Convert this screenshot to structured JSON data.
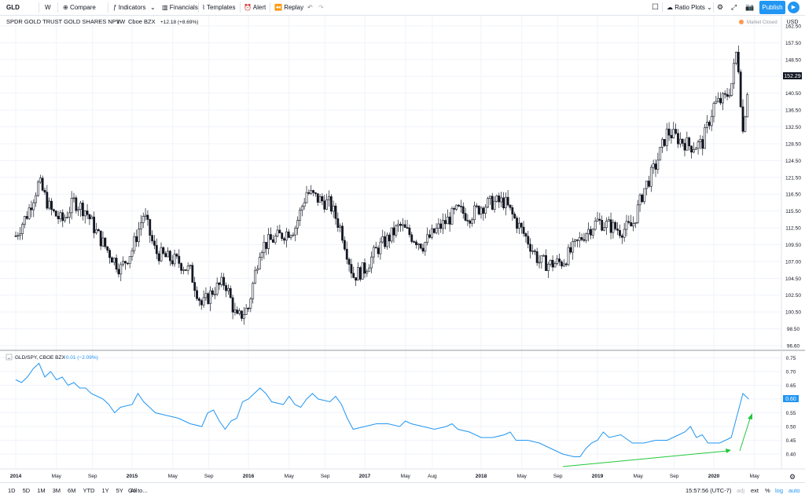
{
  "toolbar": {
    "symbol": "GLD",
    "interval": "W",
    "compare": "Compare",
    "indicators": "Indicators",
    "financials": "Financials",
    "templates": "Templates",
    "alert": "Alert",
    "replay": "Replay",
    "ratio_plots": "Ratio Plots",
    "publish": "Publish"
  },
  "legend": {
    "title": "SPDR GOLD TRUST GOLD SHARES NPV",
    "interval": "1W",
    "exchange": "Cboe BZX",
    "change": "+12.18 (+8.69%)",
    "market_status": "Market Closed"
  },
  "indicator_legend": {
    "title": "GLD/SPY, CBOE BZX",
    "change": "−0.01 (−2.09%)"
  },
  "currency": "USD",
  "bottom": {
    "ranges": [
      "1D",
      "5D",
      "1M",
      "3M",
      "6M",
      "YTD",
      "1Y",
      "5Y",
      "All"
    ],
    "goto": "Go to...",
    "time": "15:57:56 (UTC-7)",
    "adj": "adj",
    "ext": "ext",
    "pct": "%",
    "log": "log",
    "auto": "auto"
  },
  "colors": {
    "accent": "#2196f3",
    "ratio_line": "#2196f3",
    "annotation": "#22c73a",
    "market_closed": "#ff9850",
    "candle": "#131722"
  },
  "chart_data": [
    {
      "type": "candlestick",
      "title": "SPDR GOLD TRUST GOLD SHARES NPV",
      "ylim": [
        96.6,
        162.5
      ],
      "y_ticks": [
        "162.50",
        "157.50",
        "152.29",
        "148.50",
        "144.50",
        "140.50",
        "136.50",
        "132.50",
        "128.50",
        "124.50",
        "121.50",
        "116.50",
        "115.50",
        "112.50",
        "109.50",
        "107.00",
        "104.50",
        "102.50",
        "100.50",
        "98.50",
        "96.60"
      ],
      "last_price": "152.29",
      "x_tick_labels": [
        "2014",
        "May",
        "Sep",
        "2015",
        "May",
        "Sep",
        "2016",
        "May",
        "Sep",
        "2017",
        "May",
        "Aug",
        "2018",
        "May",
        "Sep",
        "2019",
        "May",
        "Sep",
        "2020",
        "May"
      ],
      "weekly_close_approx": [
        [
          2014.0,
          119.4
        ],
        [
          2014.1,
          124.0
        ],
        [
          2014.2,
          130.5
        ],
        [
          2014.3,
          124.7
        ],
        [
          2014.4,
          122.4
        ],
        [
          2014.5,
          126.5
        ],
        [
          2014.6,
          124.7
        ],
        [
          2014.7,
          119.8
        ],
        [
          2014.8,
          116.0
        ],
        [
          2014.9,
          112.5
        ],
        [
          2015.0,
          116.5
        ],
        [
          2015.1,
          124.0
        ],
        [
          2015.2,
          116.0
        ],
        [
          2015.3,
          114.8
        ],
        [
          2015.4,
          114.0
        ],
        [
          2015.5,
          112.0
        ],
        [
          2015.6,
          104.8
        ],
        [
          2015.7,
          108.2
        ],
        [
          2015.8,
          109.8
        ],
        [
          2015.9,
          102.0
        ],
        [
          2016.0,
          104.5
        ],
        [
          2016.1,
          117.0
        ],
        [
          2016.2,
          118.5
        ],
        [
          2016.3,
          119.8
        ],
        [
          2016.4,
          121.0
        ],
        [
          2016.5,
          128.5
        ],
        [
          2016.6,
          127.0
        ],
        [
          2016.7,
          126.0
        ],
        [
          2016.8,
          120.5
        ],
        [
          2016.9,
          111.0
        ],
        [
          2017.0,
          112.5
        ],
        [
          2017.1,
          116.5
        ],
        [
          2017.2,
          118.8
        ],
        [
          2017.3,
          121.5
        ],
        [
          2017.4,
          119.4
        ],
        [
          2017.5,
          117.5
        ],
        [
          2017.6,
          120.2
        ],
        [
          2017.7,
          122.4
        ],
        [
          2017.8,
          124.7
        ],
        [
          2017.9,
          123.5
        ],
        [
          2018.0,
          125.5
        ],
        [
          2018.1,
          126.3
        ],
        [
          2018.2,
          126.5
        ],
        [
          2018.3,
          122.4
        ],
        [
          2018.4,
          118.5
        ],
        [
          2018.5,
          114.0
        ],
        [
          2018.6,
          113.5
        ],
        [
          2018.7,
          114.0
        ],
        [
          2018.8,
          117.0
        ],
        [
          2018.9,
          120.2
        ],
        [
          2019.0,
          122.4
        ],
        [
          2019.1,
          121.5
        ],
        [
          2019.2,
          120.5
        ],
        [
          2019.3,
          121.5
        ],
        [
          2019.4,
          129.0
        ],
        [
          2019.5,
          134.0
        ],
        [
          2019.6,
          141.0
        ],
        [
          2019.7,
          139.5
        ],
        [
          2019.8,
          138.0
        ],
        [
          2019.9,
          138.5
        ],
        [
          2020.0,
          146.5
        ],
        [
          2020.1,
          148.0
        ],
        [
          2020.15,
          150.5
        ],
        [
          2020.2,
          158.5
        ],
        [
          2020.25,
          141.0
        ],
        [
          2020.3,
          152.3
        ]
      ]
    },
    {
      "type": "line",
      "title": "GLD/SPY, CBOE BZX",
      "ylim": [
        0.36,
        0.76
      ],
      "y_ticks": [
        "0.75",
        "0.70",
        "0.65",
        "0.60",
        "0.55",
        "0.50",
        "0.45",
        "0.40"
      ],
      "last_value": "0.60",
      "series": [
        {
          "values": [
            [
              2014.0,
              0.67
            ],
            [
              2014.05,
              0.66
            ],
            [
              2014.1,
              0.68
            ],
            [
              2014.15,
              0.71
            ],
            [
              2014.2,
              0.73
            ],
            [
              2014.25,
              0.68
            ],
            [
              2014.3,
              0.7
            ],
            [
              2014.35,
              0.67
            ],
            [
              2014.4,
              0.68
            ],
            [
              2014.45,
              0.65
            ],
            [
              2014.5,
              0.66
            ],
            [
              2014.55,
              0.64
            ],
            [
              2014.6,
              0.64
            ],
            [
              2014.65,
              0.62
            ],
            [
              2014.7,
              0.61
            ],
            [
              2014.75,
              0.6
            ],
            [
              2014.8,
              0.58
            ],
            [
              2014.85,
              0.55
            ],
            [
              2014.9,
              0.57
            ],
            [
              2015.0,
              0.58
            ],
            [
              2015.05,
              0.62
            ],
            [
              2015.1,
              0.59
            ],
            [
              2015.15,
              0.57
            ],
            [
              2015.2,
              0.55
            ],
            [
              2015.3,
              0.54
            ],
            [
              2015.4,
              0.53
            ],
            [
              2015.5,
              0.51
            ],
            [
              2015.6,
              0.5
            ],
            [
              2015.65,
              0.55
            ],
            [
              2015.7,
              0.56
            ],
            [
              2015.75,
              0.52
            ],
            [
              2015.8,
              0.49
            ],
            [
              2015.85,
              0.52
            ],
            [
              2015.9,
              0.53
            ],
            [
              2015.95,
              0.59
            ],
            [
              2016.0,
              0.6
            ],
            [
              2016.1,
              0.64
            ],
            [
              2016.15,
              0.62
            ],
            [
              2016.2,
              0.59
            ],
            [
              2016.3,
              0.58
            ],
            [
              2016.35,
              0.61
            ],
            [
              2016.4,
              0.58
            ],
            [
              2016.45,
              0.57
            ],
            [
              2016.5,
              0.6
            ],
            [
              2016.55,
              0.62
            ],
            [
              2016.6,
              0.6
            ],
            [
              2016.7,
              0.59
            ],
            [
              2016.75,
              0.61
            ],
            [
              2016.8,
              0.58
            ],
            [
              2016.85,
              0.53
            ],
            [
              2016.9,
              0.49
            ],
            [
              2017.0,
              0.5
            ],
            [
              2017.1,
              0.51
            ],
            [
              2017.2,
              0.51
            ],
            [
              2017.3,
              0.5
            ],
            [
              2017.35,
              0.52
            ],
            [
              2017.4,
              0.51
            ],
            [
              2017.5,
              0.5
            ],
            [
              2017.6,
              0.49
            ],
            [
              2017.7,
              0.5
            ],
            [
              2017.75,
              0.51
            ],
            [
              2017.8,
              0.49
            ],
            [
              2017.9,
              0.48
            ],
            [
              2018.0,
              0.46
            ],
            [
              2018.1,
              0.46
            ],
            [
              2018.2,
              0.47
            ],
            [
              2018.25,
              0.48
            ],
            [
              2018.3,
              0.45
            ],
            [
              2018.4,
              0.45
            ],
            [
              2018.5,
              0.44
            ],
            [
              2018.6,
              0.42
            ],
            [
              2018.7,
              0.4
            ],
            [
              2018.8,
              0.39
            ],
            [
              2018.85,
              0.39
            ],
            [
              2018.9,
              0.42
            ],
            [
              2018.95,
              0.44
            ],
            [
              2019.0,
              0.45
            ],
            [
              2019.05,
              0.48
            ],
            [
              2019.1,
              0.46
            ],
            [
              2019.2,
              0.47
            ],
            [
              2019.3,
              0.44
            ],
            [
              2019.4,
              0.44
            ],
            [
              2019.5,
              0.45
            ],
            [
              2019.6,
              0.45
            ],
            [
              2019.7,
              0.47
            ],
            [
              2019.75,
              0.48
            ],
            [
              2019.8,
              0.5
            ],
            [
              2019.85,
              0.46
            ],
            [
              2019.9,
              0.47
            ],
            [
              2019.95,
              0.44
            ],
            [
              2020.0,
              0.44
            ],
            [
              2020.05,
              0.44
            ],
            [
              2020.1,
              0.45
            ],
            [
              2020.15,
              0.46
            ],
            [
              2020.2,
              0.54
            ],
            [
              2020.25,
              0.62
            ],
            [
              2020.3,
              0.6
            ]
          ]
        }
      ]
    }
  ]
}
